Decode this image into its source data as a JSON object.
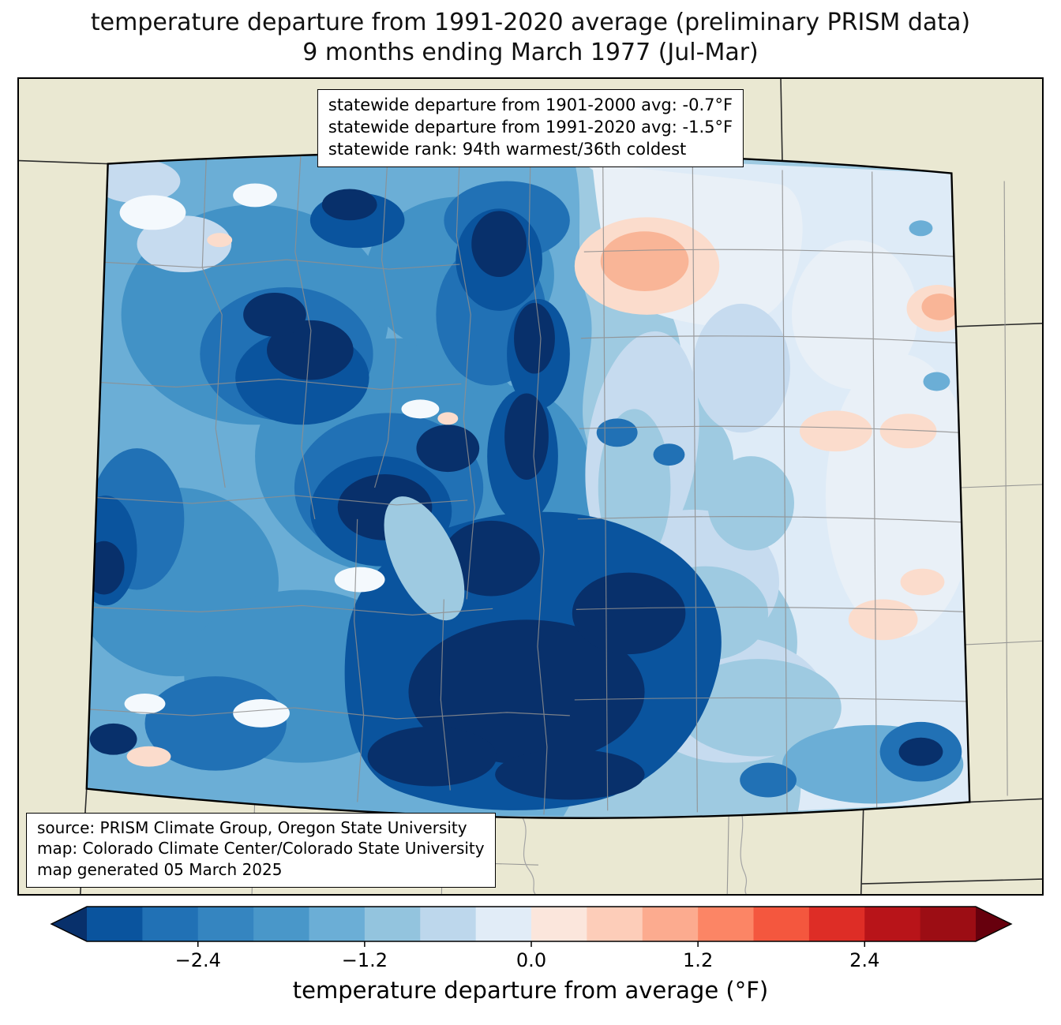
{
  "title": {
    "line1": "temperature departure from 1991-2020 average (preliminary PRISM data)",
    "line2": "9 months ending March 1977 (Jul-Mar)"
  },
  "stats_box": {
    "lines": [
      "statewide departure from 1901-2000 avg: -0.7°F",
      "statewide departure from 1991-2020 avg: -1.5°F",
      "statewide rank: 94th warmest/36th coldest"
    ]
  },
  "source_box": {
    "lines": [
      "source: PRISM Climate Group, Oregon State University",
      "map: Colorado Climate Center/Colorado State University",
      "map generated 05 March 2025"
    ]
  },
  "colorbar": {
    "label": "temperature departure from average (°F)",
    "range": [
      -3.2,
      3.2
    ],
    "ticks": [
      {
        "value": -2.4,
        "label": "−2.4"
      },
      {
        "value": -1.2,
        "label": "−1.2"
      },
      {
        "value": 0.0,
        "label": "0.0"
      },
      {
        "value": 1.2,
        "label": "1.2"
      },
      {
        "value": 2.4,
        "label": "2.4"
      }
    ],
    "segment_colors": [
      "#0a549e",
      "#2171b5",
      "#3585c0",
      "#4997c9",
      "#6baed6",
      "#93c4de",
      "#bdd7ec",
      "#e1ecf7",
      "#fbe6dc",
      "#fdcdb9",
      "#fcab8f",
      "#fc8565",
      "#f4573e",
      "#de2d26",
      "#b81419",
      "#9c0d14"
    ],
    "under_color": "#08306b",
    "over_color": "#67000d"
  },
  "map": {
    "region": "Colorado",
    "background_color": "#eae8d2",
    "county_line_color": "#8f8f8f",
    "river_line_color": "#a5a5a5",
    "neighbor_line_color": "#2b2b2b",
    "state_border_color": "#000000"
  },
  "palette": {
    "navy": "#08306b",
    "blue1": "#0a549e",
    "blue2": "#2171b5",
    "blue3": "#4292c6",
    "blue4": "#6baed6",
    "blue5": "#9ecae1",
    "blue6": "#c6dbef",
    "blue7": "#deebf7",
    "pale": "#e9f0f7",
    "white": "#f4f9fd",
    "pink1": "#fbdccc",
    "pink2": "#f9b597"
  }
}
